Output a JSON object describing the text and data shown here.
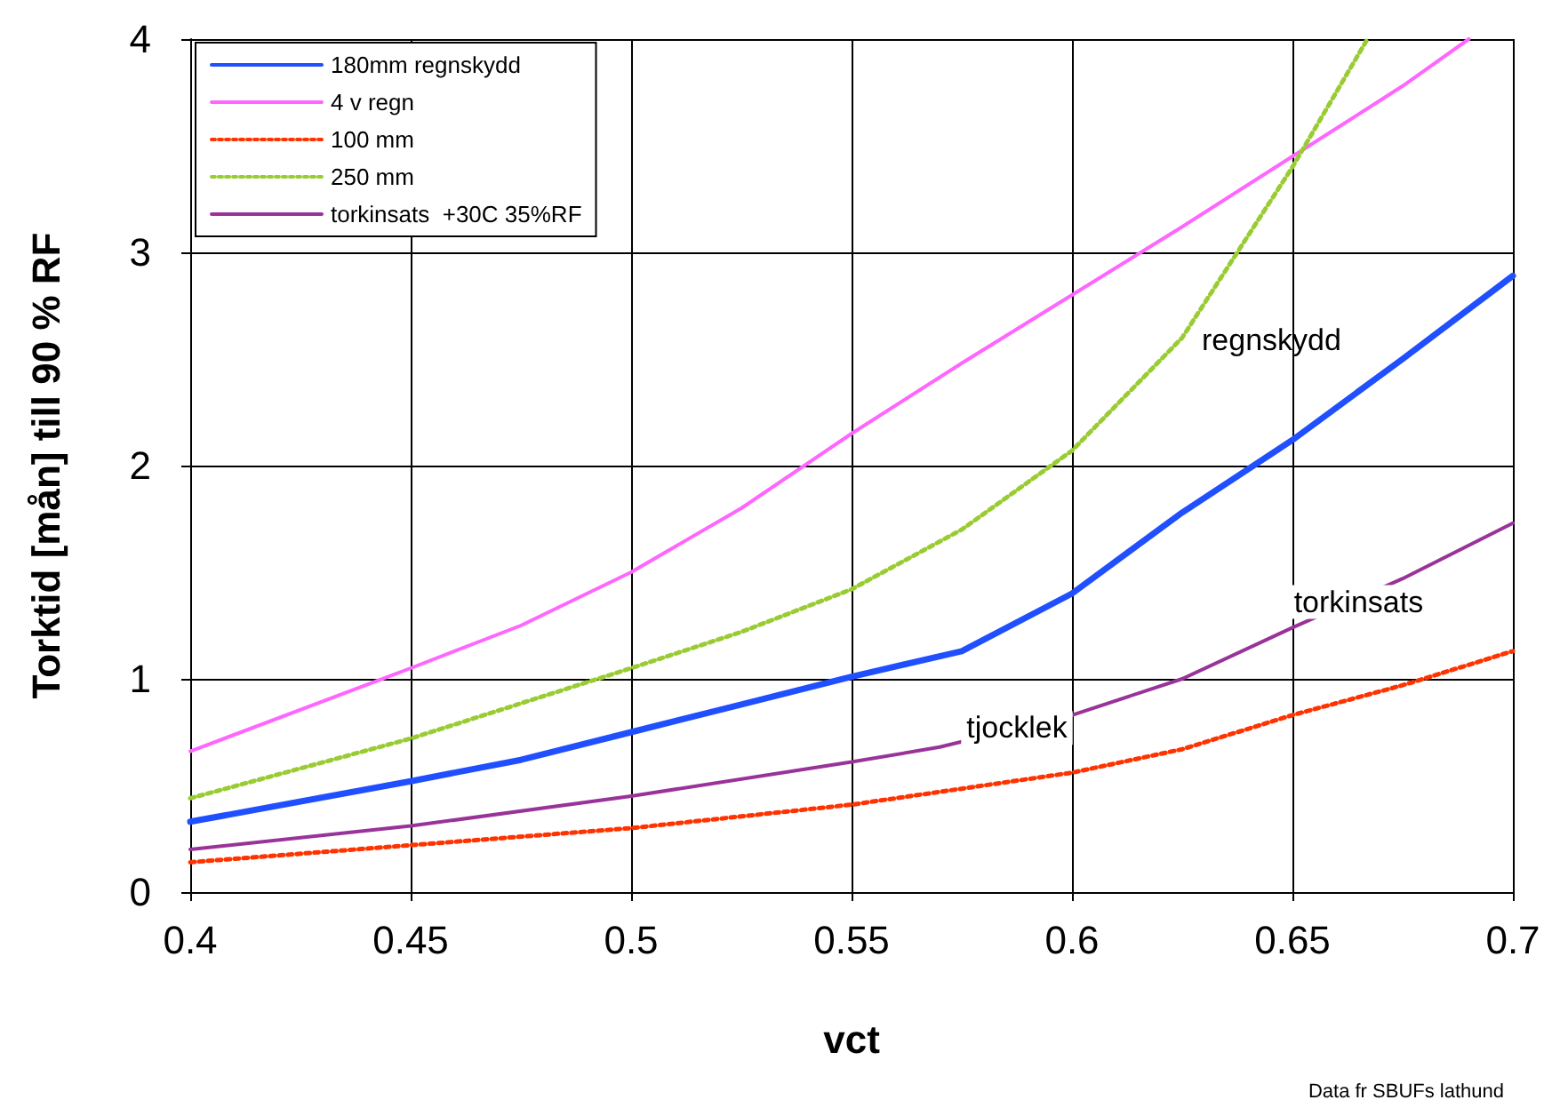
{
  "chart_data": {
    "type": "line",
    "xlabel": "vct",
    "ylabel": "Torktid [mån] till 90 % RF",
    "xlim": [
      0.4,
      0.7
    ],
    "ylim": [
      0,
      4
    ],
    "xticks": [
      0.4,
      0.45,
      0.5,
      0.55,
      0.6,
      0.65,
      0.7
    ],
    "yticks": [
      0,
      1,
      2,
      3,
      4
    ],
    "grid": true,
    "legend": "top left",
    "marker": "none",
    "series": [
      {
        "name": "180mm regnskydd",
        "color": "#1f4fff",
        "line_style": "solid",
        "x": [
          0.4,
          0.45,
          0.475,
          0.5,
          0.525,
          0.55,
          0.575,
          0.6,
          0.625,
          0.65,
          0.675,
          0.7
        ],
        "values": [
          0.33,
          0.52,
          0.62,
          0.75,
          0.88,
          1.01,
          1.13,
          1.4,
          1.78,
          2.12,
          2.5,
          2.89
        ]
      },
      {
        "name": "4 v regn",
        "color": "#ff66ff",
        "line_style": "solid",
        "x": [
          0.4,
          0.45,
          0.475,
          0.5,
          0.525,
          0.55,
          0.575,
          0.6,
          0.625,
          0.65,
          0.675,
          0.69
        ],
        "values": [
          0.66,
          1.05,
          1.25,
          1.5,
          1.8,
          2.15,
          2.48,
          2.8,
          3.12,
          3.45,
          3.78,
          4.0
        ]
      },
      {
        "name": "100 mm",
        "color": "#ff3300",
        "line_style": "dotted",
        "x": [
          0.4,
          0.45,
          0.5,
          0.55,
          0.6,
          0.625,
          0.65,
          0.675,
          0.7
        ],
        "values": [
          0.14,
          0.22,
          0.3,
          0.41,
          0.56,
          0.67,
          0.83,
          0.97,
          1.13
        ]
      },
      {
        "name": "250 mm",
        "color": "#99cc33",
        "line_style": "dotted",
        "x": [
          0.4,
          0.45,
          0.5,
          0.525,
          0.55,
          0.575,
          0.6,
          0.625,
          0.65,
          0.667
        ],
        "values": [
          0.44,
          0.72,
          1.05,
          1.22,
          1.42,
          1.7,
          2.07,
          2.6,
          3.4,
          4.0
        ]
      },
      {
        "name": "torkinsats  +30C 35%RF",
        "color": "#993399",
        "line_style": "solid",
        "x": [
          0.4,
          0.45,
          0.5,
          0.55,
          0.57,
          0.6,
          0.625,
          0.65,
          0.675,
          0.7
        ],
        "values": [
          0.2,
          0.31,
          0.45,
          0.61,
          0.68,
          0.83,
          1.0,
          1.24,
          1.47,
          1.73
        ]
      }
    ],
    "annotations": [
      "regnskydd",
      {
        "text": "torkinsats",
        "x": 0.665,
        "y": 1.36
      },
      {
        "text": "tjocklek",
        "x": 0.5875,
        "y": 0.77
      },
      "Data fr SBUFs lathund"
    ]
  }
}
